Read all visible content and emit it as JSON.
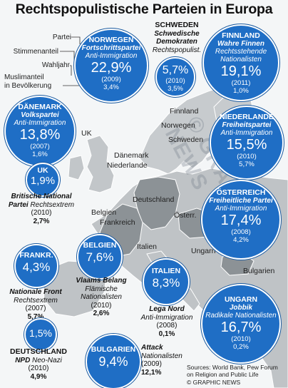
{
  "title": "Rechtspopulistische Parteien in Europa",
  "legend": {
    "partei": "Partei",
    "stimmenanteil": "Stimmenanteil",
    "wahljahr": "Wahljahr",
    "muslim_line1": "Muslimanteil",
    "muslim_line2": "in Bevölkerung"
  },
  "countries": {
    "norwegen": {
      "name": "NORWEGEN",
      "party": "Fortschrittspartei",
      "position": "Anti-Immigration",
      "vote": "22,9%",
      "year": "(2009)",
      "muslim": "3,4%"
    },
    "schweden": {
      "name": "SCHWEDEN",
      "party_l1": "Schwedische",
      "party_l2": "Demokraten",
      "position": "Rechtspopulist.",
      "vote": "5,7%",
      "year": "(2010)",
      "muslim": "3,5%"
    },
    "finnland": {
      "name": "FINNLAND",
      "party": "Wahre Finnen",
      "position_l1": "Rechtsstehende",
      "position_l2": "Nationalisten",
      "vote": "19,1%",
      "year": "(2011)",
      "muslim": "1,0%"
    },
    "daenemark": {
      "name": "DÄNEMARK",
      "party": "Volkspartei",
      "position": "Anti-Immigration",
      "vote": "13,8%",
      "year": "(2007)",
      "muslim": "1,6%"
    },
    "niederlande": {
      "name": "NIEDERLANDE",
      "party": "Freiheitspartei",
      "position": "Anti-Immigration",
      "vote": "15,5%",
      "year": "(2010)",
      "muslim": "5,7%"
    },
    "uk": {
      "name": "UK",
      "vote": "1,9%",
      "party_l1": "Britische National",
      "party_l2": "Partei",
      "position": "Rechtsextrem",
      "year": "(2010)",
      "muslim": "2,7%"
    },
    "oesterreich": {
      "name": "ÖSTERREICH",
      "party": "Freiheitliche Partei",
      "position": "Anti-Immigration",
      "vote": "17,4%",
      "year": "(2008)",
      "muslim": "4,2%"
    },
    "frankreich": {
      "name": "FRANKR.",
      "vote": "4,3%",
      "party": "Nationale Front",
      "position": "Rechtsextrem",
      "year": "(2007)",
      "muslim": "5,7%"
    },
    "belgien": {
      "name": "BELGIEN",
      "vote": "7,6%",
      "party": "Vlaams Belang",
      "position_l1": "Flämische",
      "position_l2": "Nationalisten",
      "year": "(2010)",
      "muslim": "2,6%"
    },
    "italien": {
      "name": "ITALIEN",
      "vote": "8,3%",
      "party": "Lega Nord",
      "position": "Anti-Immigration",
      "year": "(2008)",
      "muslim": "0,1%"
    },
    "ungarn": {
      "name": "UNGARN",
      "party": "Jobbik",
      "position": "Radikale Nationalisten",
      "vote": "16,7%",
      "year": "(2010)",
      "muslim": "0,2%"
    },
    "deutschland": {
      "name": "DEUTSCHLAND",
      "vote": "1,5%",
      "party": "NPD",
      "position": "Neo-Nazi",
      "year": "(2010)",
      "muslim": "4,9%"
    },
    "bulgarien": {
      "name": "BULGARIEN",
      "vote": "9,4%",
      "party": "Attack",
      "position_l1": "Nationalisten",
      "year": "(2009)",
      "muslim": "12,1%"
    }
  },
  "map_labels": {
    "uk": "UK",
    "finnland": "Finnland",
    "norwegen": "Norwegen",
    "schweden": "Schweden",
    "daenemark": "Dänemark",
    "niederlande": "Niederlande",
    "deutschland": "Deutschland",
    "belgien": "Belgien",
    "frankreich": "Frankreich",
    "oesterr": "Österr.",
    "italien": "Italien",
    "ungarn": "Ungarn",
    "bulgarien": "Bulgarien"
  },
  "source_l1": "Sources: World Bank, Pew Forum",
  "source_l2": "on Religion and Public Life",
  "credit": "© GRAPHIC NEWS",
  "watermark": "© GRAPHIC NEWS",
  "colors": {
    "circle": "#1f6ec5",
    "land": "#bfc3c6",
    "sea": "#f4f6f7",
    "highlight": "#8c9296"
  }
}
